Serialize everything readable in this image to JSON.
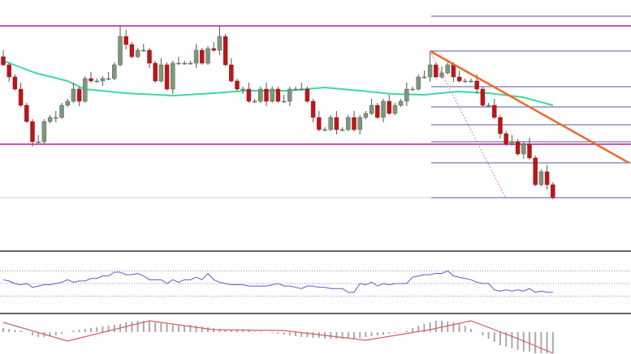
{
  "chart_data": [
    {
      "type": "candlestick",
      "title": "",
      "colors": {
        "bull": "#7d977d",
        "bear": "#b3191b",
        "ma": "#3fd7a4",
        "resistance": "#d14fb8",
        "fib": "#5555aa",
        "trendline": "#ec6a2a",
        "dashed": "#e07a9a",
        "baseline": "#c8c8c8"
      },
      "close": [
        220,
        205,
        190,
        170,
        150,
        125,
        125,
        150,
        155,
        155,
        170,
        175,
        190,
        175,
        203,
        200,
        200,
        203,
        203,
        220,
        255,
        245,
        230,
        238,
        238,
        222,
        200,
        220,
        190,
        222,
        222,
        222,
        222,
        238,
        222,
        240,
        238,
        255,
        220,
        200,
        190,
        190,
        175,
        175,
        190,
        175,
        190,
        175,
        175,
        190,
        190,
        190,
        175,
        155,
        140,
        140,
        155,
        140,
        140,
        155,
        140,
        155,
        160,
        170,
        155,
        175,
        160,
        170,
        175,
        190,
        190,
        205,
        205,
        220,
        205,
        210,
        220,
        205,
        200,
        200,
        200,
        190,
        170,
        170,
        155,
        135,
        122,
        125,
        110,
        122,
        105,
        72,
        88,
        72,
        56
      ],
      "peak_highs": [
        [
          20,
          268
        ],
        [
          37,
          268
        ],
        [
          73,
          237
        ]
      ],
      "moving_average": [
        [
          0,
          225
        ],
        [
          5.5,
          210
        ],
        [
          11,
          200
        ],
        [
          13.9,
          190
        ],
        [
          20.8,
          185
        ],
        [
          29.2,
          182
        ],
        [
          36,
          185
        ],
        [
          41.6,
          188
        ],
        [
          48.6,
          188
        ],
        [
          55,
          192
        ],
        [
          61,
          188
        ],
        [
          66.6,
          184
        ],
        [
          72,
          183
        ],
        [
          77.7,
          187
        ],
        [
          83,
          185
        ],
        [
          88.9,
          180
        ],
        [
          94,
          170
        ]
      ],
      "horizontal_levels": {
        "resistance": [
          268,
          122
        ],
        "baseline": 56
      },
      "fib_levels": [
        280,
        237,
        193,
        168,
        146,
        125,
        99,
        56
      ],
      "trendline": {
        "from": [
          73,
          237
        ],
        "to": [
          107,
          99
        ]
      },
      "dashed_line": {
        "from": [
          73,
          237
        ],
        "to": [
          86,
          55
        ]
      }
    },
    {
      "type": "line",
      "title": "",
      "levels": [
        70,
        50,
        30
      ],
      "values": [
        56,
        54,
        50,
        48,
        50,
        44,
        46,
        48,
        48,
        50,
        52,
        56,
        52,
        54,
        54,
        58,
        58,
        62,
        62,
        68,
        68,
        64,
        64,
        66,
        62,
        56,
        56,
        56,
        50,
        56,
        52,
        56,
        56,
        60,
        56,
        66,
        56,
        52,
        50,
        48,
        48,
        48,
        46,
        46,
        46,
        46,
        48,
        50,
        46,
        46,
        44,
        42,
        46,
        46,
        44,
        44,
        42,
        42,
        42,
        36,
        36,
        50,
        48,
        52,
        46,
        50,
        48,
        50,
        50,
        50,
        60,
        62,
        64,
        64,
        66,
        66,
        70,
        62,
        60,
        58,
        56,
        52,
        50,
        50,
        40,
        38,
        40,
        38,
        40,
        38,
        42,
        36,
        38,
        36,
        36
      ],
      "color": "#5a5acc"
    },
    {
      "type": "bar",
      "title": "",
      "histogram": [
        5,
        4,
        3,
        2,
        0,
        -4,
        -6,
        -6,
        -5,
        -4,
        -2,
        0,
        2,
        3,
        4,
        5,
        6,
        7,
        8,
        9,
        10,
        12,
        13,
        14,
        14,
        13,
        12,
        11,
        10,
        9,
        8,
        8,
        9,
        8,
        7,
        6,
        5,
        4,
        3,
        3,
        2,
        2,
        2,
        1,
        1,
        0,
        -1,
        -2,
        -3,
        -4,
        -5,
        -6,
        -6,
        -7,
        -7,
        -8,
        -8,
        -8,
        -8,
        -8,
        -8,
        -7,
        -6,
        -5,
        -4,
        -3,
        -2,
        -1,
        0,
        2,
        5,
        8,
        10,
        12,
        14,
        14,
        13,
        12,
        10,
        8,
        4,
        0,
        -4,
        -8,
        -12,
        -16,
        -18,
        -20,
        -22,
        -24,
        -24,
        -26,
        -26,
        -26,
        -26
      ],
      "signal": [
        [
          0,
          12
        ],
        [
          11,
          -11
        ],
        [
          25,
          14
        ],
        [
          36,
          3
        ],
        [
          48,
          2
        ],
        [
          62,
          -10
        ],
        [
          73,
          3
        ],
        [
          80,
          14
        ],
        [
          88,
          -8
        ],
        [
          94,
          -26
        ]
      ],
      "colors": {
        "histogram": "#aaaaaa",
        "signal": "#d06060"
      }
    }
  ]
}
